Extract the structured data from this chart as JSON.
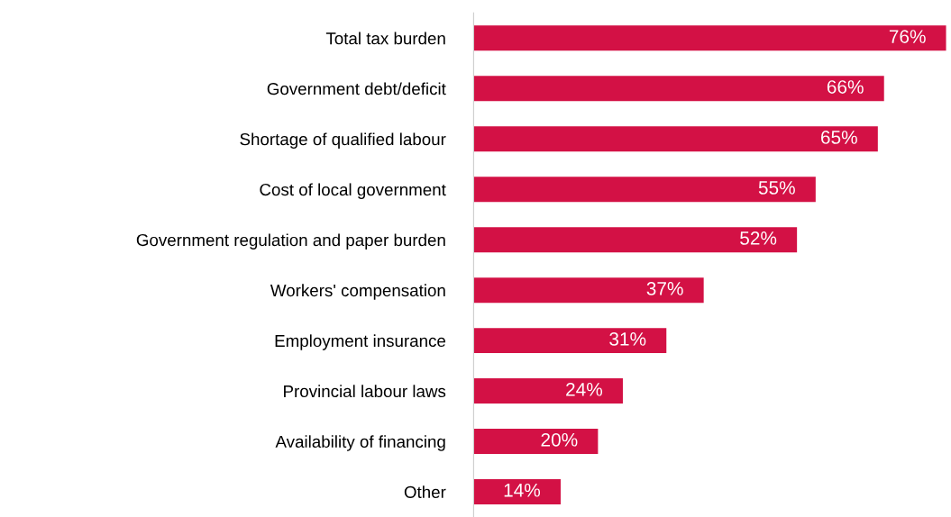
{
  "chart_data": {
    "type": "bar",
    "orientation": "horizontal",
    "categories": [
      "Total tax burden",
      "Government debt/deficit",
      "Shortage of qualified labour",
      "Cost of local government",
      "Government regulation and paper burden",
      "Workers' compensation",
      "Employment insurance",
      "Provincial labour laws",
      "Availability of financing",
      "Other"
    ],
    "values": [
      76,
      66,
      65,
      55,
      52,
      37,
      31,
      24,
      20,
      14
    ],
    "value_labels": [
      "76%",
      "66%",
      "65%",
      "55%",
      "52%",
      "37%",
      "31%",
      "24%",
      "20%",
      "14%"
    ],
    "color": "#d31145",
    "grid": false,
    "legend": false
  }
}
